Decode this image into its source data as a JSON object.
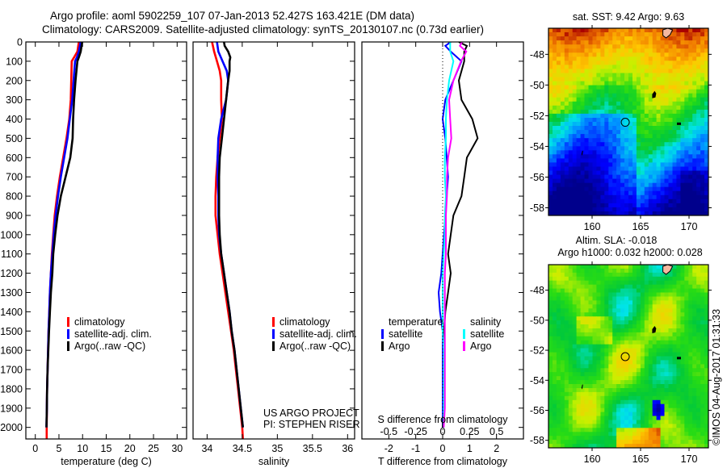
{
  "title": {
    "line1": "Argo profile: aoml 5902259_107 07-Jan-2013 52.427S 163.421E (DM data)",
    "line2": "Climatology: CARS2009. Satellite-adjusted climatology: synTS_20130107.nc (0.73d earlier)"
  },
  "colors": {
    "climatology": "#ff0000",
    "satellite": "#0000ff",
    "argo": "#000000",
    "sal_satellite": "#00ffff",
    "sal_argo": "#ff00ff"
  },
  "chart_data": [
    {
      "type": "line",
      "name": "temperature-profile",
      "xlabel": "temperature (deg C)",
      "ylabel": "",
      "xlim": [
        -2,
        32
      ],
      "ylim": [
        2060,
        0
      ],
      "xticks": [
        0,
        5,
        10,
        15,
        20,
        25,
        30
      ],
      "yticks": [
        0,
        100,
        200,
        300,
        400,
        500,
        600,
        700,
        800,
        900,
        1000,
        1100,
        1200,
        1300,
        1400,
        1500,
        1600,
        1700,
        1800,
        1900,
        2000
      ],
      "legend": [
        "climatology",
        "satellite-adj. clim.",
        "Argo(..raw -QC)"
      ],
      "legend_position": "center",
      "series": [
        {
          "name": "climatology",
          "depth": [
            0,
            50,
            80,
            100,
            200,
            300,
            400,
            500,
            600,
            700,
            800,
            900,
            1000,
            1100,
            1200,
            1300,
            1400,
            1500,
            1600,
            1700,
            1800,
            1900,
            2000,
            2060
          ],
          "values": [
            9.2,
            8.9,
            8.2,
            7.7,
            7.6,
            7.5,
            7.2,
            6.6,
            5.9,
            5.2,
            4.6,
            4.1,
            3.8,
            3.5,
            3.3,
            3.1,
            2.95,
            2.8,
            2.7,
            2.6,
            2.5,
            2.45,
            2.4,
            2.4
          ]
        },
        {
          "name": "satellite-adj. clim.",
          "depth": [
            0,
            50,
            80,
            100,
            200,
            300,
            400,
            500,
            600,
            700,
            800,
            900,
            1000,
            1100,
            1200,
            1300,
            1400,
            1500,
            1600,
            1700,
            1800,
            1900,
            2000
          ],
          "values": [
            9.6,
            9.2,
            8.8,
            8.4,
            8.1,
            7.8,
            7.3,
            6.8,
            6.1,
            5.4,
            4.8,
            4.3,
            3.9,
            3.6,
            3.3,
            3.1,
            2.95,
            2.8,
            2.7,
            2.6,
            2.5,
            2.45,
            2.35
          ]
        },
        {
          "name": "Argo(..raw -QC)",
          "depth": [
            0,
            50,
            80,
            100,
            200,
            300,
            400,
            500,
            600,
            700,
            800,
            900,
            1000,
            1100,
            1200,
            1300,
            1400,
            1500,
            1600,
            1700,
            1800,
            1900,
            2000
          ],
          "values": [
            9.9,
            9.6,
            9.2,
            8.9,
            8.5,
            8.2,
            8.0,
            7.9,
            7.4,
            6.4,
            5.4,
            4.7,
            4.2,
            3.8,
            3.6,
            3.3,
            3.1,
            2.9,
            2.75,
            2.6,
            2.5,
            2.45,
            2.35
          ]
        }
      ]
    },
    {
      "type": "line",
      "name": "salinity-profile",
      "xlabel": "salinity",
      "xlim": [
        33.8,
        36.1
      ],
      "ylim": [
        2060,
        0
      ],
      "xticks": [
        34,
        34.5,
        35,
        35.5,
        36
      ],
      "legend": [
        "climatology",
        "satellite-adj. clim.",
        "Argo(..raw -QC)"
      ],
      "legend_position": "center-right",
      "annotations": [
        "US ARGO PROJECT",
        "PI: STEPHEN RISER"
      ],
      "series": [
        {
          "name": "climatology",
          "depth": [
            0,
            50,
            100,
            150,
            200,
            300,
            400,
            500,
            600,
            700,
            800,
            900,
            1000,
            1100,
            1200,
            1300,
            1400,
            1500,
            1600,
            1700,
            1800,
            1900,
            2000,
            2060
          ],
          "values": [
            34.07,
            34.1,
            34.14,
            34.18,
            34.2,
            34.2,
            34.21,
            34.18,
            34.15,
            34.13,
            34.12,
            34.12,
            34.15,
            34.18,
            34.22,
            34.26,
            34.3,
            34.34,
            34.38,
            34.41,
            34.44,
            34.47,
            34.5,
            34.51
          ]
        },
        {
          "name": "satellite-adj. clim.",
          "depth": [
            0,
            50,
            100,
            150,
            200,
            300,
            400,
            500,
            600,
            700,
            800,
            900,
            1000,
            1100,
            1200,
            1300,
            1400,
            1500,
            1600,
            1700,
            1800,
            1900,
            2000
          ],
          "values": [
            34.14,
            34.16,
            34.22,
            34.28,
            34.3,
            34.27,
            34.2,
            34.16,
            34.15,
            34.15,
            34.16,
            34.16,
            34.17,
            34.2,
            34.24,
            34.28,
            34.32,
            34.35,
            34.39,
            34.42,
            34.45,
            34.48,
            34.51
          ]
        },
        {
          "name": "Argo(..raw -QC)",
          "depth": [
            0,
            20,
            50,
            80,
            100,
            150,
            200,
            300,
            400,
            500,
            600,
            700,
            800,
            900,
            1000,
            1100,
            1200,
            1300,
            1400,
            1500,
            1600,
            1700,
            1800,
            1900,
            2000
          ],
          "values": [
            34.24,
            34.25,
            34.3,
            34.33,
            34.32,
            34.32,
            34.3,
            34.27,
            34.24,
            34.21,
            34.18,
            34.17,
            34.17,
            34.17,
            34.18,
            34.2,
            34.24,
            34.28,
            34.32,
            34.35,
            34.39,
            34.42,
            34.45,
            34.48,
            34.51
          ]
        }
      ]
    },
    {
      "type": "line",
      "name": "difference-profile",
      "xlabel": "T difference from climatology",
      "xlabel2": "S difference from climatology",
      "xlim": [
        -3,
        3
      ],
      "xlim2": [
        -0.75,
        0.75
      ],
      "ylim": [
        2060,
        0
      ],
      "xticks": [
        -2,
        -1,
        0,
        1,
        2
      ],
      "xticks2": [
        -0.5,
        -0.25,
        0,
        0.25,
        0.5
      ],
      "xtick2_labels": [
        "-0.5",
        "-0.25",
        "0",
        "0.25",
        "0.5"
      ],
      "legend_titles": [
        "temperature",
        "salinity"
      ],
      "legend": [
        "satellite",
        "Argo",
        "satellite",
        "Argo"
      ],
      "series": [
        {
          "name": "temperature satellite",
          "axis": "T",
          "depth": [
            0,
            20,
            50,
            100,
            200,
            300,
            400,
            500,
            600,
            700,
            800,
            900,
            1000,
            1100,
            1200,
            1300,
            1400,
            1500,
            1600,
            1700,
            1800,
            1900,
            2000
          ],
          "values": [
            0.3,
            0.1,
            0.3,
            0.7,
            0.4,
            0.1,
            0.0,
            0.1,
            0.15,
            0.2,
            0.15,
            0.1,
            0.05,
            0.0,
            -0.05,
            -0.15,
            -0.1,
            0.0,
            0.0,
            0.0,
            0.0,
            0.0,
            0.0
          ]
        },
        {
          "name": "temperature Argo",
          "axis": "T",
          "depth": [
            0,
            20,
            50,
            100,
            200,
            300,
            400,
            500,
            600,
            700,
            800,
            900,
            1000,
            1100,
            1200,
            1300,
            1400,
            1500,
            1600,
            1700,
            1800,
            1900,
            2000
          ],
          "values": [
            0.6,
            0.9,
            0.8,
            0.8,
            0.6,
            0.7,
            1.1,
            1.3,
            0.9,
            0.8,
            0.7,
            0.4,
            0.3,
            0.2,
            0.3,
            0.2,
            0.1,
            0.05,
            0.05,
            0.05,
            0.05,
            0.05,
            0.0
          ]
        },
        {
          "name": "salinity satellite",
          "axis": "S",
          "depth": [
            0,
            50,
            100,
            200,
            300,
            400,
            500,
            600,
            700,
            800,
            900,
            1000,
            1100,
            1200,
            1300,
            1400,
            1500,
            1600,
            1700,
            1800,
            1900,
            2000
          ],
          "values": [
            0.07,
            0.07,
            0.1,
            0.06,
            0.04,
            0.03,
            0.03,
            0.02,
            0.02,
            0.03,
            0.02,
            0.02,
            0.01,
            0.0,
            0.0,
            0.0,
            0.0,
            0.01,
            0.01,
            0.01,
            0.01,
            0.01
          ]
        },
        {
          "name": "salinity Argo",
          "axis": "S",
          "depth": [
            0,
            20,
            50,
            100,
            200,
            300,
            400,
            500,
            600,
            700,
            800,
            900,
            1000,
            1100,
            1200,
            1300,
            1400,
            1500,
            1600,
            1700,
            1800,
            1900,
            2000
          ],
          "values": [
            0.18,
            0.16,
            0.22,
            0.17,
            0.1,
            0.06,
            0.07,
            0.08,
            0.05,
            0.04,
            0.04,
            0.03,
            0.03,
            0.03,
            0.02,
            0.02,
            0.02,
            0.02,
            0.02,
            0.02,
            0.02,
            0.02,
            0.01
          ]
        }
      ]
    },
    {
      "type": "heatmap",
      "name": "sst-map",
      "title": "sat. SST: 9.42 Argo: 9.63",
      "xlim": [
        155.5,
        172
      ],
      "ylim": [
        -58.5,
        -46.3
      ],
      "xticks": [
        160,
        165,
        170
      ],
      "yticks": [
        -48,
        -50,
        -52,
        -54,
        -56,
        -58
      ],
      "marker": {
        "lon": 163.421,
        "lat": -52.427
      }
    },
    {
      "type": "heatmap",
      "name": "sla-map",
      "title": "Altim. SLA: -0.018",
      "subtitle": "Argo h1000: 0.032 h2000: 0.028",
      "xlim": [
        155.5,
        172
      ],
      "ylim": [
        -58.5,
        -46.3
      ],
      "xticks": [
        160,
        165,
        170
      ],
      "yticks": [
        -48,
        -50,
        -52,
        -54,
        -56,
        -58
      ],
      "marker": {
        "lon": 163.421,
        "lat": -52.427
      }
    }
  ],
  "credit": "©IMOS 04-Aug-2017 01:31:33"
}
